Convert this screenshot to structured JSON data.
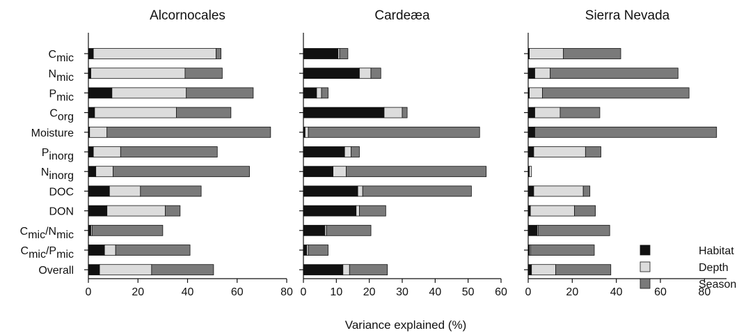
{
  "x_label": "Variance explained (%)",
  "categories": [
    {
      "base": "C",
      "sub": "mic"
    },
    {
      "base": "N",
      "sub": "mic"
    },
    {
      "base": "P",
      "sub": "mic"
    },
    {
      "base": "C",
      "sub": "org"
    },
    {
      "base": "Moisture",
      "sub": ""
    },
    {
      "base": "P",
      "sub": "inorg"
    },
    {
      "base": "N",
      "sub": "inorg"
    },
    {
      "base": "DOC",
      "sub": ""
    },
    {
      "base": "DON",
      "sub": ""
    },
    {
      "base": "C",
      "sub": "mic",
      "base2": "/N",
      "sub2": "mic"
    },
    {
      "base": "C",
      "sub": "mic",
      "base2": "/P",
      "sub2": "mic"
    },
    {
      "base": "Overall",
      "sub": ""
    }
  ],
  "legend": [
    {
      "name": "Habitat",
      "color": "#111111"
    },
    {
      "name": "Depth",
      "color": "#dcdcdc"
    },
    {
      "name": "Season",
      "color": "#7a7a7a"
    }
  ],
  "chart_data": [
    {
      "type": "bar",
      "orientation": "horizontal",
      "stacked": true,
      "title": "Alcornocales",
      "xlabel": "Variance explained (%)",
      "xlim": [
        0,
        80
      ],
      "xticks": [
        0,
        20,
        40,
        60,
        80
      ],
      "series": [
        {
          "name": "Habitat",
          "values": [
            2,
            1,
            9.5,
            2.5,
            0.5,
            2,
            3,
            8.5,
            7.5,
            1,
            6.5,
            4.5
          ]
        },
        {
          "name": "Depth",
          "values": [
            49.5,
            38,
            30,
            33,
            7,
            11,
            7,
            12.5,
            23.5,
            0.5,
            4.5,
            21
          ]
        },
        {
          "name": "Season",
          "values": [
            2,
            15,
            27,
            22,
            66,
            39,
            55,
            24.5,
            6,
            28.5,
            30,
            25
          ]
        }
      ]
    },
    {
      "type": "bar",
      "orientation": "horizontal",
      "stacked": true,
      "title": "Cardeæa",
      "xlabel": "Variance explained (%)",
      "xlim": [
        0,
        60
      ],
      "xticks": [
        0,
        10,
        20,
        30,
        40,
        50,
        60
      ],
      "series": [
        {
          "name": "Habitat",
          "values": [
            10.5,
            17,
            4,
            24.5,
            0.5,
            12.5,
            9,
            16.5,
            16,
            6.5,
            1,
            12
          ]
        },
        {
          "name": "Depth",
          "values": [
            0.5,
            3.5,
            1.5,
            5.5,
            1,
            2,
            4,
            1.5,
            1,
            0.5,
            0.5,
            2
          ]
        },
        {
          "name": "Season",
          "values": [
            2.5,
            3,
            2,
            1.5,
            52,
            2.5,
            42.5,
            33,
            8,
            13.5,
            6,
            11.5
          ]
        }
      ]
    },
    {
      "type": "bar",
      "orientation": "horizontal",
      "stacked": true,
      "title": "Sierra Nevada",
      "xlabel": "Variance explained (%)",
      "xlim": [
        0,
        90
      ],
      "xticks": [
        0,
        20,
        40,
        60,
        80
      ],
      "series": [
        {
          "name": "Habitat",
          "values": [
            0.5,
            3,
            0.5,
            3,
            3,
            2.5,
            0.5,
            2.5,
            1,
            4,
            0.5,
            1.5
          ]
        },
        {
          "name": "Depth",
          "values": [
            15.5,
            7,
            6,
            11.5,
            0,
            23.5,
            1,
            22.5,
            20,
            0.5,
            0.5,
            11
          ]
        },
        {
          "name": "Season",
          "values": [
            26,
            58,
            66.5,
            18,
            82.5,
            7,
            0,
            3,
            9.5,
            32.5,
            29,
            25
          ]
        }
      ]
    }
  ]
}
